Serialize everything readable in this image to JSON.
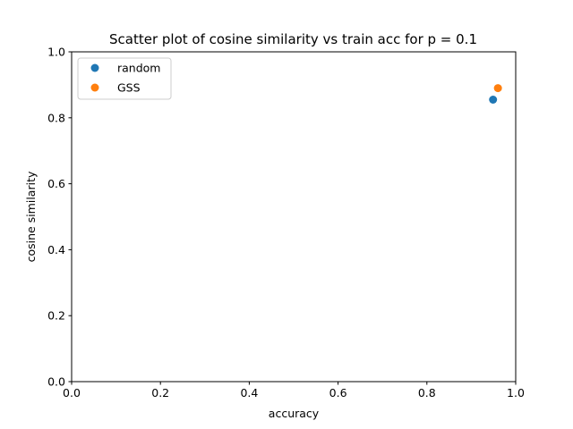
{
  "chart_data": {
    "type": "scatter",
    "title": "Scatter plot of cosine similarity vs train acc for p = 0.1",
    "xlabel": "accuracy",
    "ylabel": "cosine similarity",
    "xlim": [
      0,
      1
    ],
    "ylim": [
      0,
      1
    ],
    "xticks": [
      "0.0",
      "0.2",
      "0.4",
      "0.6",
      "0.8",
      "1.0"
    ],
    "yticks": [
      "0.0",
      "0.2",
      "0.4",
      "0.6",
      "0.8",
      "1.0"
    ],
    "grid": false,
    "legend_position": "top-left",
    "series": [
      {
        "name": "random",
        "color": "#1f77b4",
        "points": [
          {
            "x": 0.949,
            "y": 0.855
          }
        ]
      },
      {
        "name": "GSS",
        "color": "#ff7f0e",
        "points": [
          {
            "x": 0.96,
            "y": 0.89
          }
        ]
      }
    ]
  }
}
